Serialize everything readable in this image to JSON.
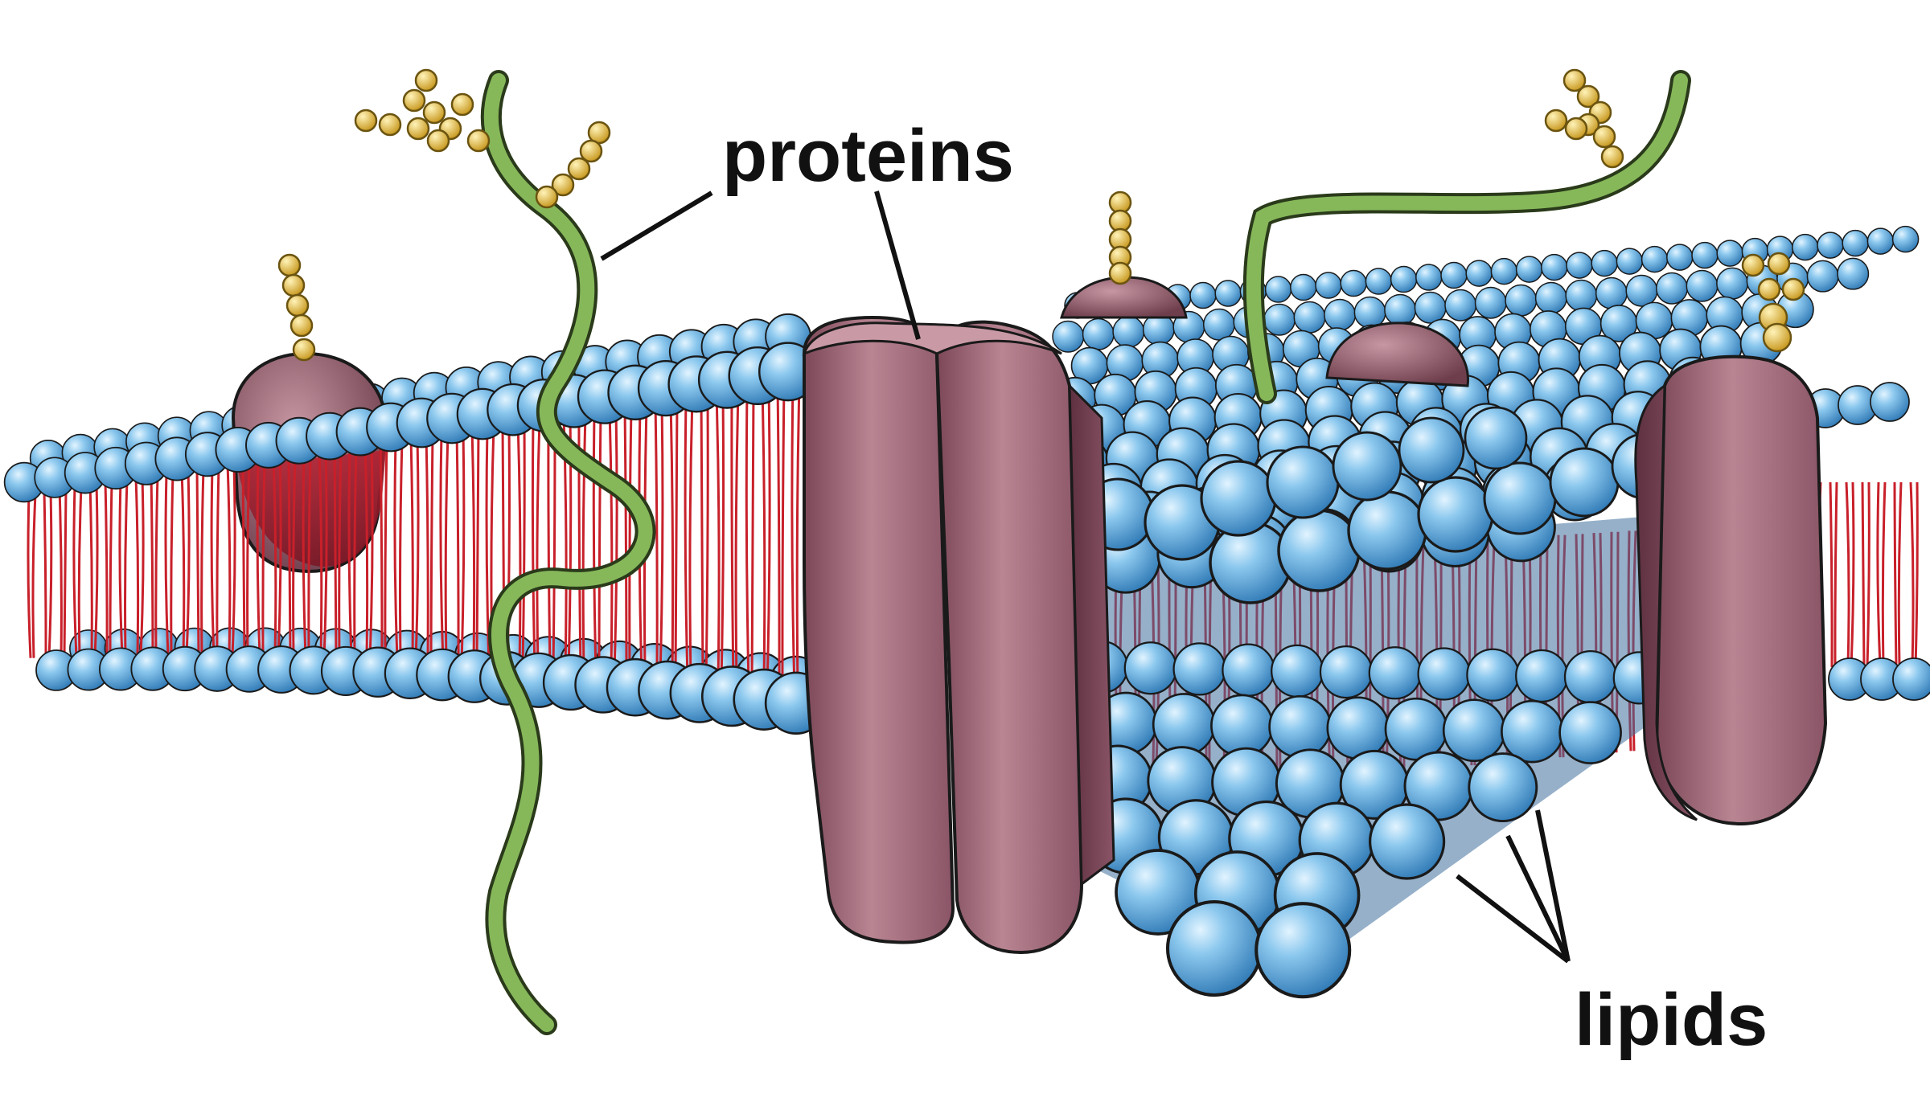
{
  "labels": {
    "proteins": "proteins",
    "lipids": "lipids"
  },
  "colors": {
    "background": "#ffffff",
    "lipid_head": "#6fb3e2",
    "lipid_head_highlight": "#d6efff",
    "lipid_head_shadow": "#2f79b5",
    "lipid_tail": "#c8202a",
    "protein": "#9a6474",
    "protein_light": "#b98593",
    "protein_dark": "#6e3e4c",
    "glycan_chain": "#86b85a",
    "sugar_bead": "#e8c14a",
    "outline": "#1a1a1a"
  },
  "icons": {
    "lipid": "phospholipid-bead",
    "protein": "membrane-protein-blob",
    "sugar": "carbohydrate-bead-chain"
  }
}
